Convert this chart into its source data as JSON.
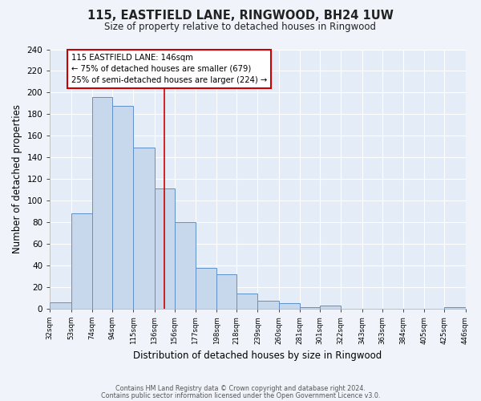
{
  "title": "115, EASTFIELD LANE, RINGWOOD, BH24 1UW",
  "subtitle": "Size of property relative to detached houses in Ringwood",
  "xlabel": "Distribution of detached houses by size in Ringwood",
  "ylabel": "Number of detached properties",
  "bin_edges": [
    32,
    53,
    74,
    94,
    115,
    136,
    156,
    177,
    198,
    218,
    239,
    260,
    281,
    301,
    322,
    343,
    363,
    384,
    405,
    425,
    446
  ],
  "bar_heights": [
    6,
    88,
    196,
    188,
    149,
    111,
    80,
    38,
    32,
    14,
    7,
    5,
    1,
    3,
    0,
    0,
    0,
    0,
    0,
    1
  ],
  "bar_facecolor": "#c8d8ec",
  "bar_edgecolor": "#6090c8",
  "vline_x": 146,
  "vline_color": "#cc0000",
  "annotation_text": "115 EASTFIELD LANE: 146sqm\n← 75% of detached houses are smaller (679)\n25% of semi-detached houses are larger (224) →",
  "annotation_box_edgecolor": "#cc0000",
  "annotation_box_facecolor": "#ffffff",
  "ylim": [
    0,
    240
  ],
  "yticks": [
    0,
    20,
    40,
    60,
    80,
    100,
    120,
    140,
    160,
    180,
    200,
    220,
    240
  ],
  "footer_line1": "Contains HM Land Registry data © Crown copyright and database right 2024.",
  "footer_line2": "Contains public sector information licensed under the Open Government Licence v3.0.",
  "bg_color": "#f0f4fa",
  "plot_bg_color": "#e4ecf7",
  "grid_color": "#ffffff"
}
